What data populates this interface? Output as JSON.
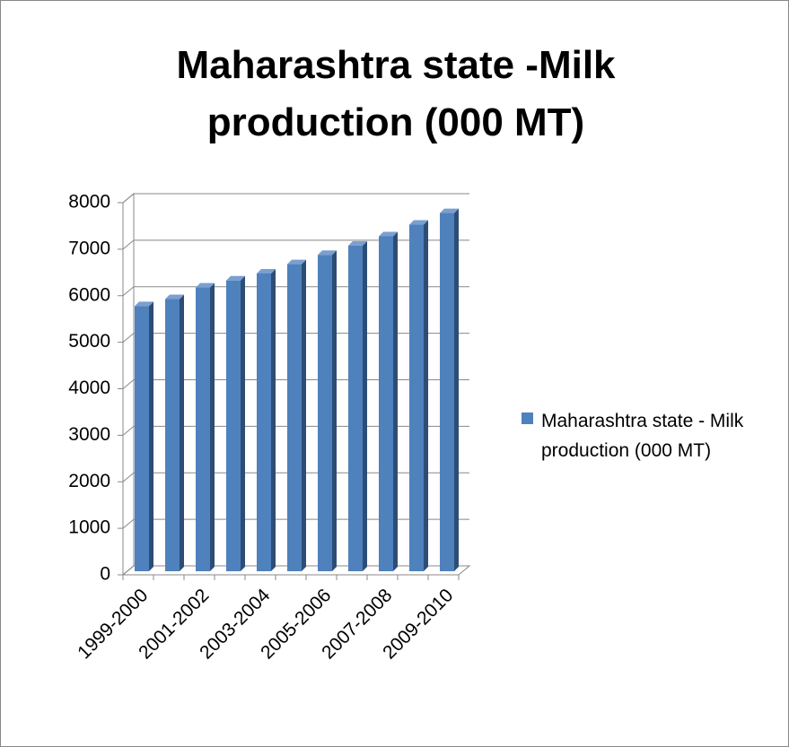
{
  "chart_data": {
    "type": "bar",
    "title": "Maharashtra  state -Milk production (000 MT)",
    "categories": [
      "1999-2000",
      null,
      "2001-2002",
      null,
      "2003-2004",
      null,
      "2005-2006",
      null,
      "2007-2008",
      null,
      "2009-2010"
    ],
    "series": [
      {
        "name": "Maharashtra  state - Milk production (000 MT)",
        "color": "#4f81bd",
        "values": [
          5700,
          5850,
          6100,
          6250,
          6400,
          6600,
          6800,
          7000,
          7200,
          7450,
          7700
        ]
      }
    ],
    "ylim": [
      0,
      8000
    ],
    "yticks": [
      0,
      1000,
      2000,
      3000,
      4000,
      5000,
      6000,
      7000,
      8000
    ],
    "grid": true,
    "legend": "right"
  }
}
